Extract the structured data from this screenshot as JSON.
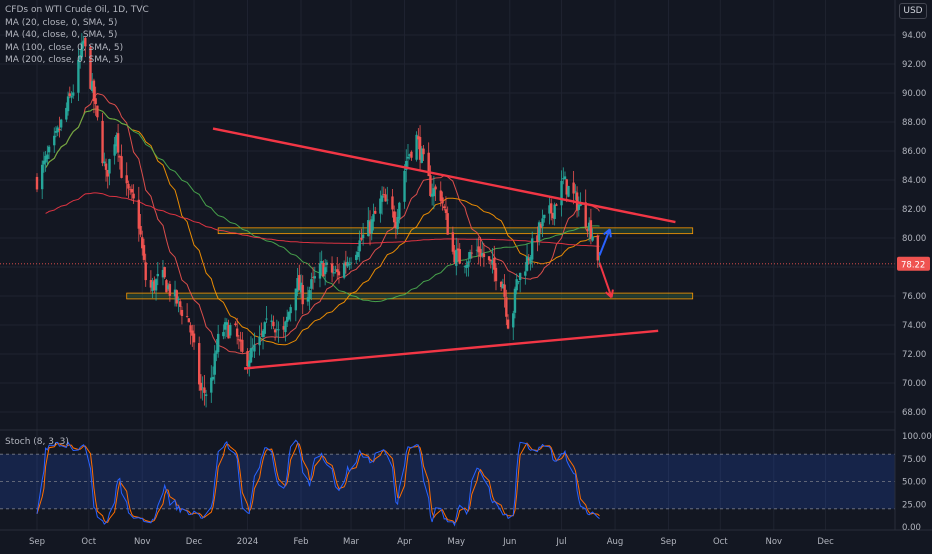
{
  "legend": {
    "title": "CFDs on WTI Crude Oil, 1D, TVC",
    "ma_lines": [
      "MA (20, close, 0, SMA, 5)",
      "MA (40, close, 0, SMA, 5)",
      "MA (100, close, 0, SMA, 5)",
      "MA (200, close, 0, SMA, 5)"
    ]
  },
  "currency_button": "USD",
  "stoch_label": "Stoch (8, 3, 3)",
  "price_label": "78.22",
  "colors": {
    "background": "#131722",
    "up": "#26a69a",
    "down": "#ef5350",
    "trendline": "#f23645",
    "ma20": "#ef5350",
    "ma40": "#ff9800",
    "ma100": "#4caf50",
    "ma200": "#f23645",
    "stoch_k": "#2962ff",
    "stoch_d": "#ff6d00",
    "up_arrow": "#2962ff",
    "down_arrow": "#f23645"
  },
  "chart_data": {
    "type": "candlestick",
    "price_axis": {
      "ticks": [
        "94.00",
        "92.00",
        "90.00",
        "88.00",
        "86.00",
        "84.00",
        "82.00",
        "80.00",
        "78.00",
        "76.00",
        "74.00",
        "72.00",
        "70.00",
        "68.00"
      ],
      "range": [
        66.5,
        95.5
      ]
    },
    "stoch_axis": {
      "ticks": [
        "100.00",
        "75.00",
        "50.00",
        "25.00",
        "0.00"
      ],
      "range": [
        0,
        100
      ],
      "band": [
        20,
        80
      ]
    },
    "time_axis": {
      "labels": [
        "Sep",
        "Oct",
        "Nov",
        "Dec",
        "2024",
        "Feb",
        "Mar",
        "Apr",
        "May",
        "Jun",
        "Jul",
        "Aug",
        "Sep",
        "Oct",
        "Nov",
        "Dec"
      ],
      "label_days": [
        0,
        30,
        61,
        91,
        122,
        153,
        182,
        213,
        243,
        274,
        304,
        335,
        366,
        396,
        427,
        457
      ]
    },
    "start_date": "2023-09-01",
    "close_anchors": [
      [
        0,
        84.0
      ],
      [
        10,
        86.5
      ],
      [
        22,
        90.6
      ],
      [
        27,
        93.5
      ],
      [
        33,
        89.5
      ],
      [
        40,
        84.2
      ],
      [
        46,
        87.4
      ],
      [
        50,
        83.7
      ],
      [
        58,
        82.0
      ],
      [
        64,
        76.2
      ],
      [
        72,
        77.4
      ],
      [
        80,
        75.8
      ],
      [
        88,
        74.3
      ],
      [
        95,
        69.4
      ],
      [
        100,
        69.4
      ],
      [
        106,
        73.6
      ],
      [
        114,
        73.8
      ],
      [
        120,
        71.5
      ],
      [
        128,
        72.5
      ],
      [
        136,
        74.7
      ],
      [
        142,
        72.8
      ],
      [
        150,
        77.0
      ],
      [
        155,
        75.8
      ],
      [
        165,
        78.0
      ],
      [
        174,
        77.5
      ],
      [
        180,
        78.5
      ],
      [
        187,
        79.7
      ],
      [
        194,
        81.0
      ],
      [
        200,
        82.7
      ],
      [
        208,
        81.3
      ],
      [
        214,
        85.4
      ],
      [
        220,
        86.9
      ],
      [
        228,
        83.4
      ],
      [
        234,
        83.0
      ],
      [
        241,
        79.0
      ],
      [
        246,
        78.4
      ],
      [
        256,
        79.2
      ],
      [
        264,
        77.9
      ],
      [
        270,
        77.0
      ],
      [
        274,
        73.3
      ],
      [
        278,
        76.9
      ],
      [
        284,
        78.5
      ],
      [
        292,
        80.8
      ],
      [
        299,
        82.0
      ],
      [
        305,
        83.9
      ],
      [
        310,
        83.0
      ],
      [
        316,
        81.9
      ],
      [
        322,
        80.3
      ],
      [
        326,
        78.2
      ]
    ],
    "current_price": 78.22,
    "moving_averages": [
      {
        "period": 20
      },
      {
        "period": 40
      },
      {
        "period": 100
      },
      {
        "period": 200
      }
    ],
    "trendlines": [
      {
        "from": [
          0,
          90.0
        ],
        "to": [
          320,
          82.3
        ],
        "extend_to_day": 370,
        "from_day": 102
      },
      {
        "from": [
          120,
          71.0
        ],
        "to": [
          360,
          73.6
        ],
        "from_day": 120
      },
      {
        "from": [
          105,
          80.5
        ],
        "to": [
          380,
          80.5
        ],
        "zone": [
          80.3,
          80.7
        ],
        "from_day": 105
      },
      {
        "from": [
          52,
          76.0
        ],
        "to": [
          380,
          76.0
        ],
        "zone": [
          75.8,
          76.2
        ],
        "from_day": 52
      }
    ],
    "scenario_arrows": [
      {
        "direction": "up",
        "from": [
          326,
          78.8
        ],
        "to": [
          332,
          80.6
        ]
      },
      {
        "direction": "down",
        "from": [
          326,
          78.3
        ],
        "to": [
          333,
          75.9
        ]
      }
    ]
  }
}
